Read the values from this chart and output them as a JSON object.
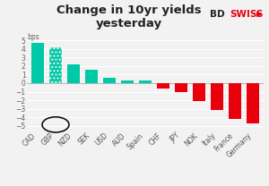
{
  "categories": [
    "CAD",
    "GBP",
    "NZD",
    "SEK",
    "USD",
    "AUD",
    "Spain",
    "CHF",
    "JPY",
    "NOK",
    "Italy",
    "France",
    "Germany"
  ],
  "values": [
    4.7,
    4.2,
    2.2,
    1.6,
    0.6,
    0.35,
    0.35,
    -0.6,
    -1.1,
    -2.1,
    -3.1,
    -4.2,
    -4.7
  ],
  "colors": [
    "#00c9a7",
    "#00c9a7",
    "#00c9a7",
    "#00c9a7",
    "#00c9a7",
    "#00c9a7",
    "#00c9a7",
    "#e8000d",
    "#e8000d",
    "#e8000d",
    "#e8000d",
    "#e8000d",
    "#e8000d"
  ],
  "hatched": [
    false,
    true,
    false,
    false,
    false,
    false,
    false,
    false,
    false,
    false,
    false,
    false,
    false
  ],
  "title": "Change in 10yr yields\nyesterday",
  "ylim": [
    -5.5,
    5.8
  ],
  "yticks": [
    -5,
    -4,
    -3,
    -2,
    -1,
    0,
    1,
    2,
    3,
    4,
    5
  ],
  "bg_color": "#f2f2f2",
  "title_fontsize": 9.5,
  "tick_fontsize": 5.5
}
